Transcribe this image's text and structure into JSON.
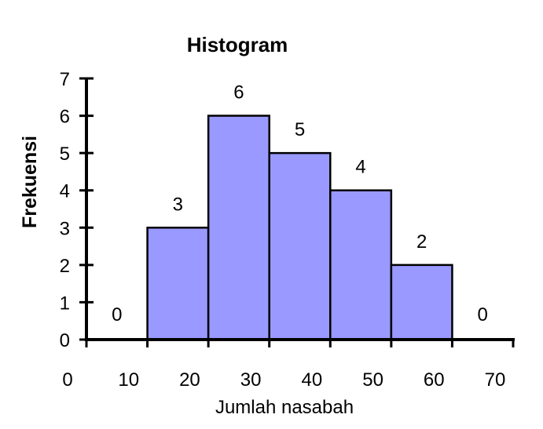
{
  "chart_data": {
    "type": "bar",
    "title": "Histogram",
    "xlabel": "Jumlah nasabah",
    "ylabel": "Frekuensi",
    "x_ticks": [
      0,
      10,
      20,
      30,
      40,
      50,
      60,
      70
    ],
    "y_ticks": [
      0,
      1,
      2,
      3,
      4,
      5,
      6,
      7
    ],
    "ylim": [
      0,
      7
    ],
    "categories": [
      "5",
      "15",
      "25",
      "35",
      "45",
      "55",
      "65"
    ],
    "values": [
      0,
      3,
      6,
      5,
      4,
      2,
      0
    ],
    "data_labels": [
      "0",
      "3",
      "6",
      "5",
      "4",
      "2",
      "0"
    ],
    "bar_color": "#9999ff",
    "bar_edge_color": "#000000",
    "grid": false,
    "legend": "none"
  }
}
